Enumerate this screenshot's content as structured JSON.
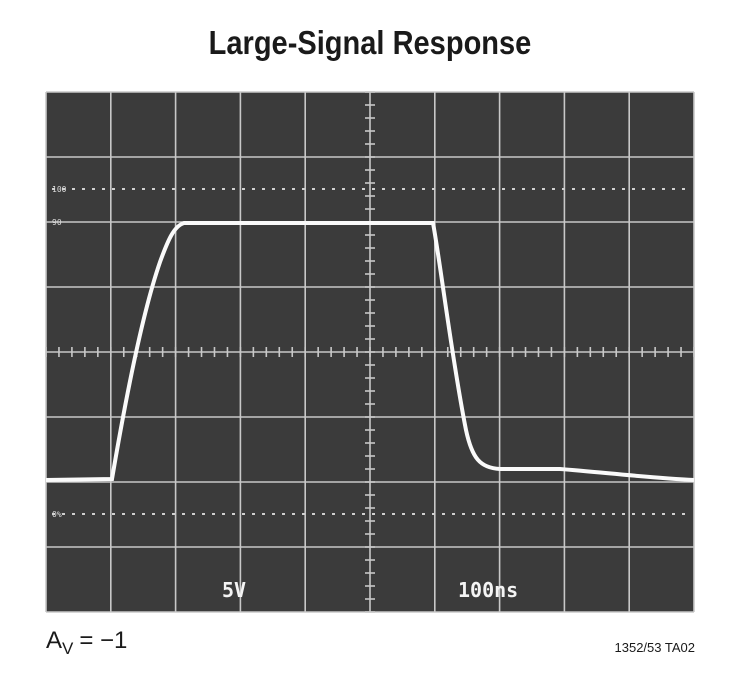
{
  "title": "Large-Signal Response",
  "screen": {
    "volts_per_div": "5V",
    "time_per_div": "100ns",
    "marks": {
      "top": "100",
      "high": "90",
      "bottom": "0%"
    }
  },
  "caption": {
    "gain_symbol": "A",
    "gain_subscript": "V",
    "gain_value": "= −1"
  },
  "figure_id": "1352/53 TA02"
}
